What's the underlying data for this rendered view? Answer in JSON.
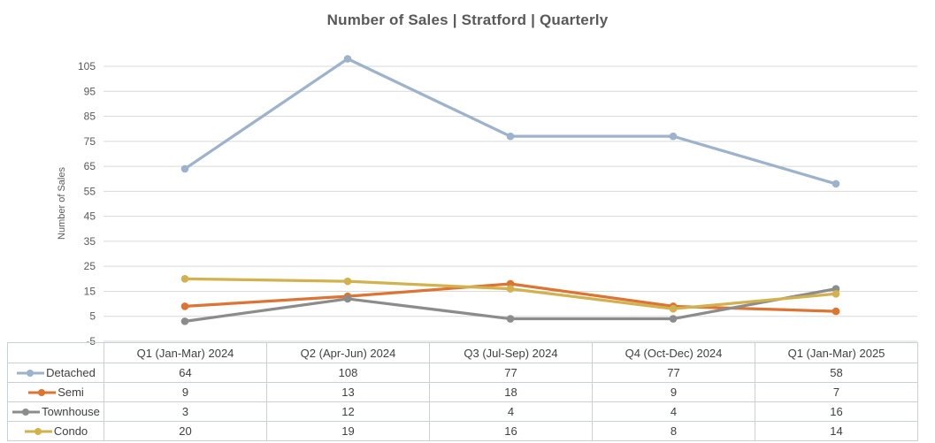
{
  "chart_data": {
    "type": "line",
    "title": "Number of Sales | Stratford | Quarterly",
    "xlabel": "",
    "ylabel": "Number of Sales",
    "categories": [
      "Q1 (Jan-Mar) 2024",
      "Q2 (Apr-Jun) 2024",
      "Q3 (Jul-Sep) 2024",
      "Q4 (Oct-Dec) 2024",
      "Q1 (Jan-Mar) 2025"
    ],
    "series": [
      {
        "name": "Detached",
        "values": [
          64,
          108,
          77,
          77,
          58
        ],
        "color": "#9db3cc"
      },
      {
        "name": "Semi",
        "values": [
          9,
          13,
          18,
          9,
          7
        ],
        "color": "#dc7434"
      },
      {
        "name": "Townhouse",
        "values": [
          3,
          12,
          4,
          4,
          16
        ],
        "color": "#8c8c8c"
      },
      {
        "name": "Condo",
        "values": [
          20,
          19,
          16,
          8,
          14
        ],
        "color": "#d1b24e"
      }
    ],
    "ylim": [
      -5,
      105
    ],
    "yticks": [
      -5,
      5,
      15,
      25,
      35,
      45,
      55,
      65,
      75,
      85,
      95,
      105
    ],
    "grid": true,
    "marker": "circle",
    "legend_position": "table-left"
  },
  "colors": {
    "gridline": "#d9d9d9",
    "axis_text": "#595959",
    "title_text": "#595959",
    "table_border": "#cbd0d8",
    "table_text": "#404040",
    "background": "#ffffff"
  }
}
